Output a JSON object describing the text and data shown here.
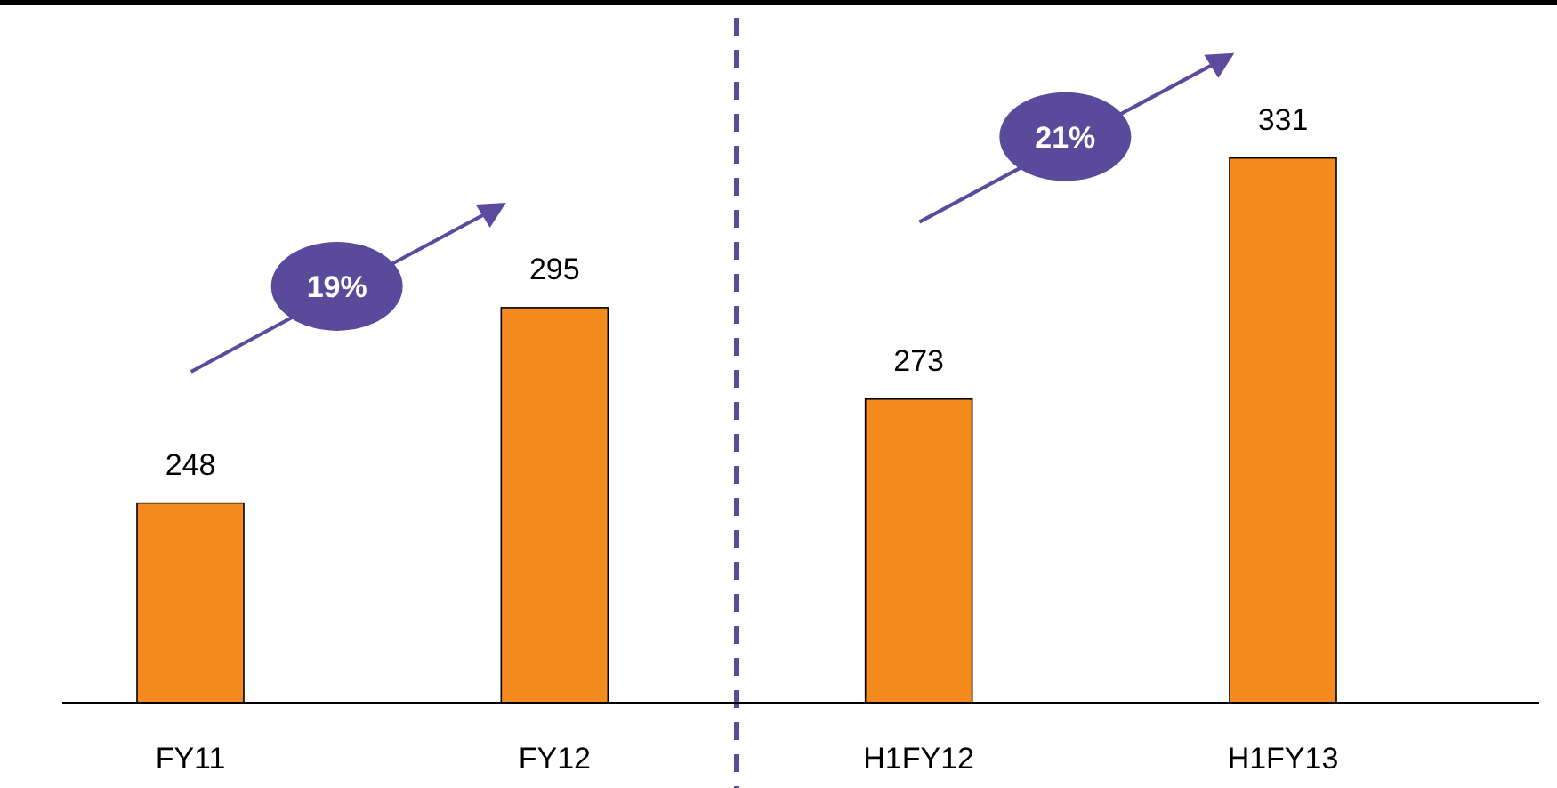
{
  "chart_data": {
    "type": "bar",
    "categories": [
      "FY11",
      "FY12",
      "H1FY12",
      "H1FY13"
    ],
    "values": [
      248,
      295,
      273,
      331
    ],
    "color": "#f58a1f",
    "ylim": [
      200,
      369
    ],
    "data_labels": true,
    "tick_labels": "x",
    "annotations": [
      "19%",
      "21%"
    ]
  }
}
